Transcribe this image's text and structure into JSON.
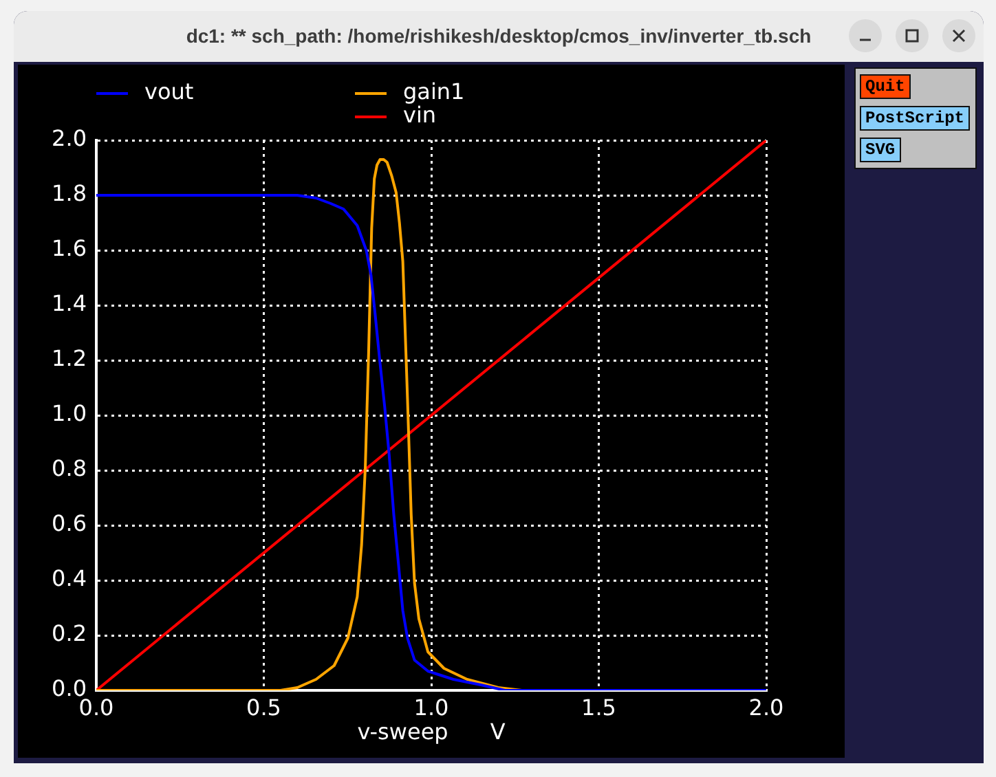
{
  "chart_data": {
    "type": "line",
    "title": "dc1: ** sch_path: /home/rishikesh/desktop/cmos_inv/inverter_tb.sch",
    "xlabel": "v-sweep      V",
    "series": [
      {
        "name": "vout",
        "color": "#0000ff",
        "x": [
          0,
          0.6,
          0.656,
          0.7,
          0.738,
          0.779,
          0.806,
          0.82,
          0.833,
          0.847,
          0.861,
          0.874,
          0.888,
          0.902,
          0.915,
          0.929,
          0.95,
          0.99,
          1.066,
          1.148,
          1.22,
          2.0
        ],
        "values": [
          1.8,
          1.8,
          1.79,
          1.77,
          1.75,
          1.69,
          1.6,
          1.51,
          1.36,
          1.19,
          1.03,
          0.86,
          0.64,
          0.46,
          0.29,
          0.19,
          0.11,
          0.07,
          0.04,
          0.02,
          0,
          0
        ]
      },
      {
        "name": "gain1",
        "color": "#ffa500",
        "x": [
          0,
          0.55,
          0.6,
          0.656,
          0.71,
          0.751,
          0.779,
          0.792,
          0.803,
          0.813,
          0.822,
          0.83,
          0.838,
          0.847,
          0.858,
          0.868,
          0.882,
          0.895,
          0.905,
          0.915,
          0.929,
          0.94,
          0.95,
          0.963,
          0.99,
          1.038,
          1.107,
          1.2,
          1.27,
          2.0
        ],
        "values": [
          0,
          0,
          0.01,
          0.04,
          0.09,
          0.19,
          0.34,
          0.53,
          0.81,
          1.23,
          1.68,
          1.86,
          1.91,
          1.93,
          1.93,
          1.92,
          1.87,
          1.81,
          1.7,
          1.56,
          1.06,
          0.64,
          0.39,
          0.26,
          0.14,
          0.08,
          0.04,
          0.01,
          0,
          0
        ]
      },
      {
        "name": "vin",
        "color": "#ff0000",
        "x": [
          0,
          2.0
        ],
        "values": [
          0,
          2.0
        ]
      }
    ],
    "xlim": [
      0,
      2.0
    ],
    "xticks": [
      {
        "value": 0,
        "label": "0.0"
      },
      0.5,
      {
        "value": 1,
        "label": "1.0"
      },
      1.5,
      {
        "value": 2,
        "label": "2.0"
      }
    ],
    "ylim": [
      0,
      2.0
    ],
    "yticks": [
      {
        "value": 0,
        "label": "0.0"
      },
      0.2,
      0.4,
      0.6,
      0.8,
      {
        "value": 1,
        "label": "1.0"
      },
      1.2,
      1.4,
      1.6,
      1.8,
      {
        "value": 2,
        "label": "2.0"
      }
    ],
    "grid": true,
    "legend": "top",
    "annotations": [
      "Quit",
      "PostScript",
      "SVG"
    ]
  }
}
